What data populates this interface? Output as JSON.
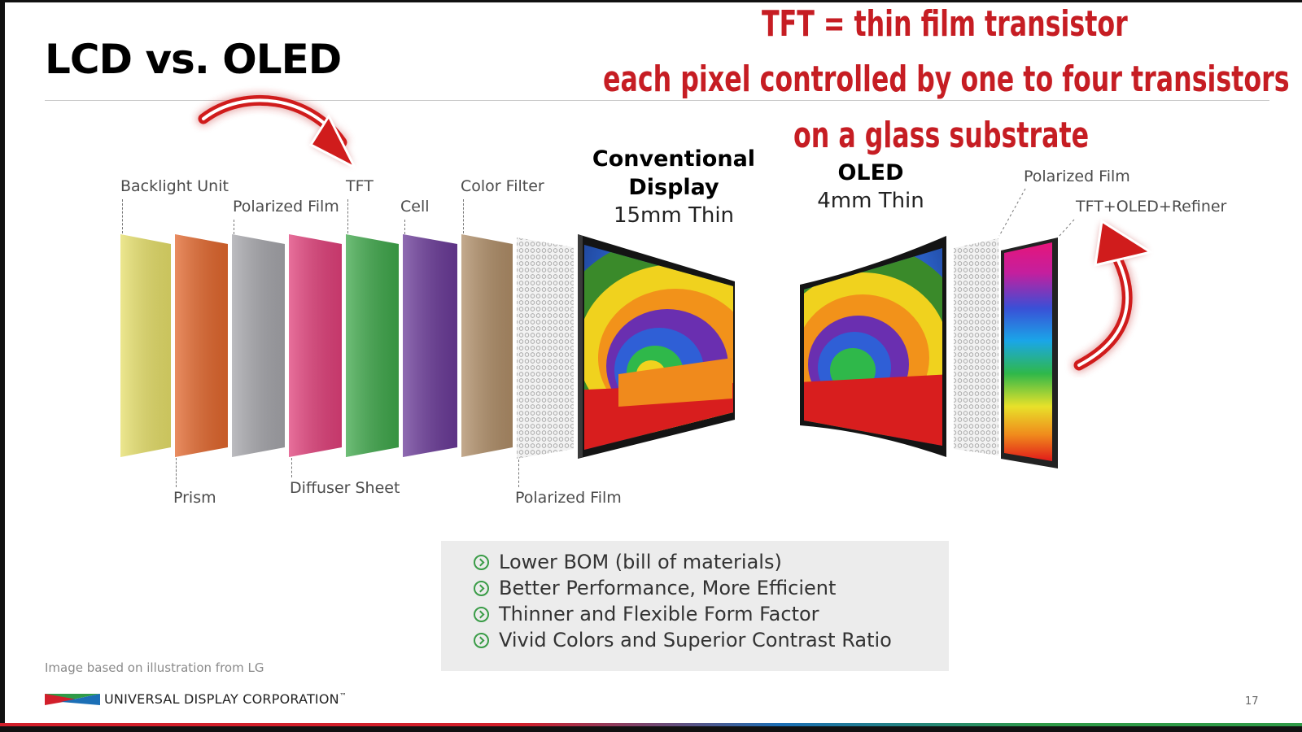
{
  "slide": {
    "title": "LCD vs. OLED",
    "page_number": "17"
  },
  "annotation": {
    "line1": "TFT = thin film transistor",
    "line2": "each pixel controlled by one to four transistors",
    "line3": "on a glass substrate",
    "color": "#c61d23"
  },
  "lcd": {
    "heading": "Conventional Display",
    "thickness": "15mm Thin",
    "layers": [
      {
        "label": "Backlight Unit",
        "color": "#e6df6a"
      },
      {
        "label": "Prism",
        "color": "#e2672d"
      },
      {
        "label": "Polarized Film",
        "color": "#a6a6ab"
      },
      {
        "label": "Diffuser Sheet",
        "color": "#e0407a"
      },
      {
        "label": "TFT",
        "color": "#3fa84b"
      },
      {
        "label": "Cell",
        "color": "#6a3a98"
      },
      {
        "label": "Color Filter",
        "color": "#b08e68"
      },
      {
        "label": "Polarized Film",
        "color": "#dcdcdc"
      }
    ]
  },
  "oled": {
    "heading": "OLED",
    "thickness": "4mm Thin",
    "layers": [
      {
        "label": "Polarized Film"
      },
      {
        "label": "TFT+OLED+Refiner"
      }
    ]
  },
  "benefits": [
    "Lower BOM (bill of materials)",
    "Better Performance, More Efficient",
    "Thinner and Flexible Form Factor",
    "Vivid Colors and Superior Contrast Ratio"
  ],
  "footer": {
    "credit": "Image based on illustration from LG",
    "company": "UNIVERSAL DISPLAY CORPORATION",
    "trademark": "™"
  }
}
